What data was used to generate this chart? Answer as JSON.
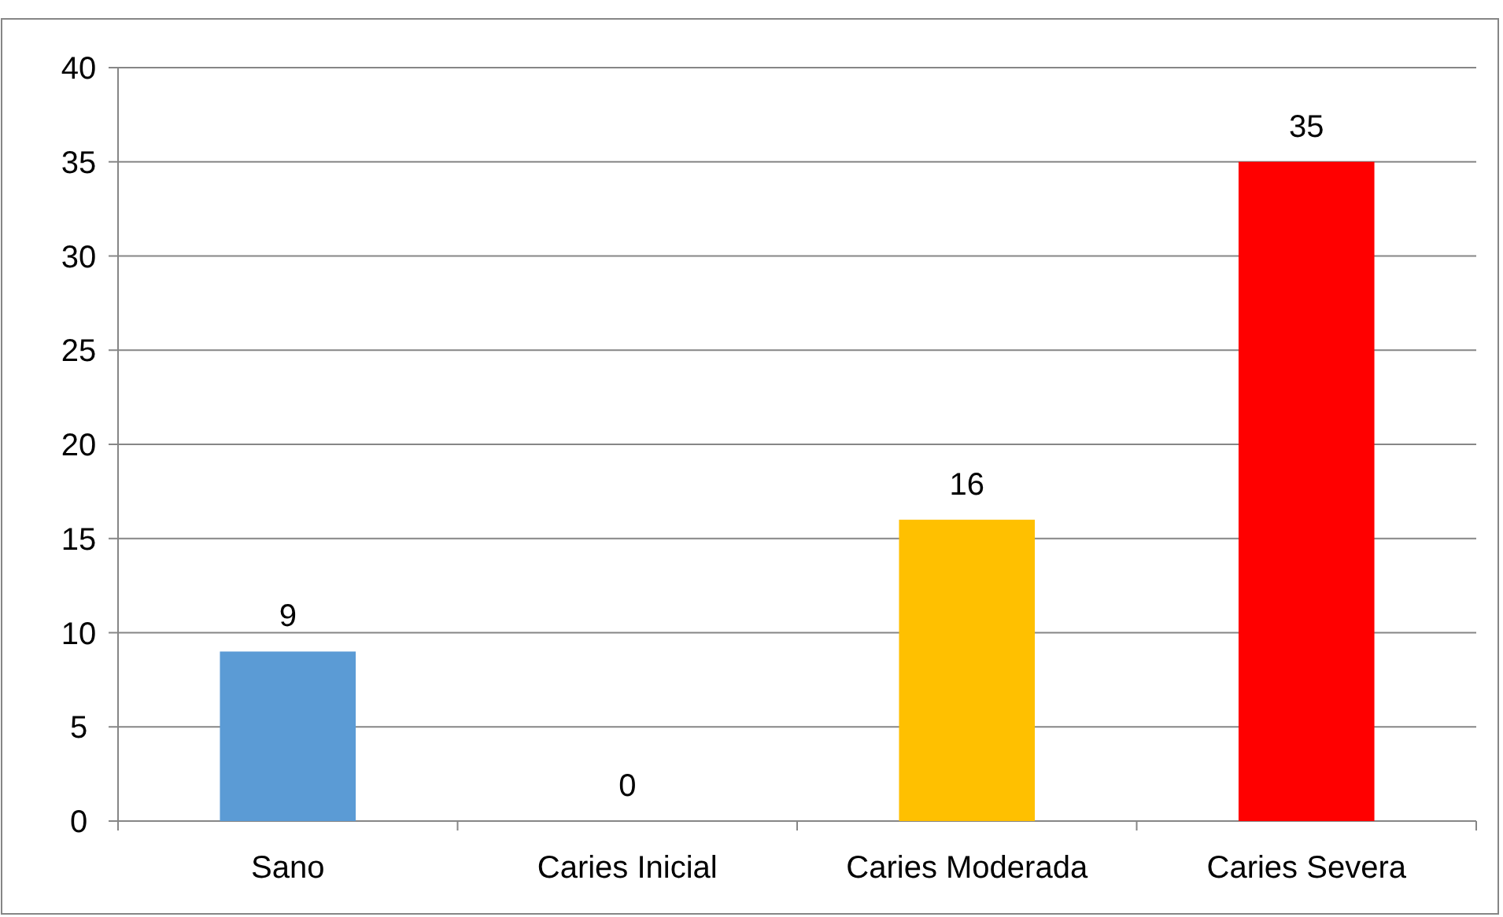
{
  "chart_data": {
    "type": "bar",
    "categories": [
      "Sano",
      "Caries Inicial",
      "Caries Moderada",
      "Caries Severa"
    ],
    "values": [
      9,
      0,
      16,
      35
    ],
    "colors": [
      "#5b9bd5",
      "#a5a5a5",
      "#ffc000",
      "#ff0000"
    ],
    "ylim": [
      0,
      40
    ],
    "yticks": [
      0,
      5,
      10,
      15,
      20,
      25,
      30,
      35,
      40
    ],
    "grid": "y",
    "data_labels": true
  }
}
